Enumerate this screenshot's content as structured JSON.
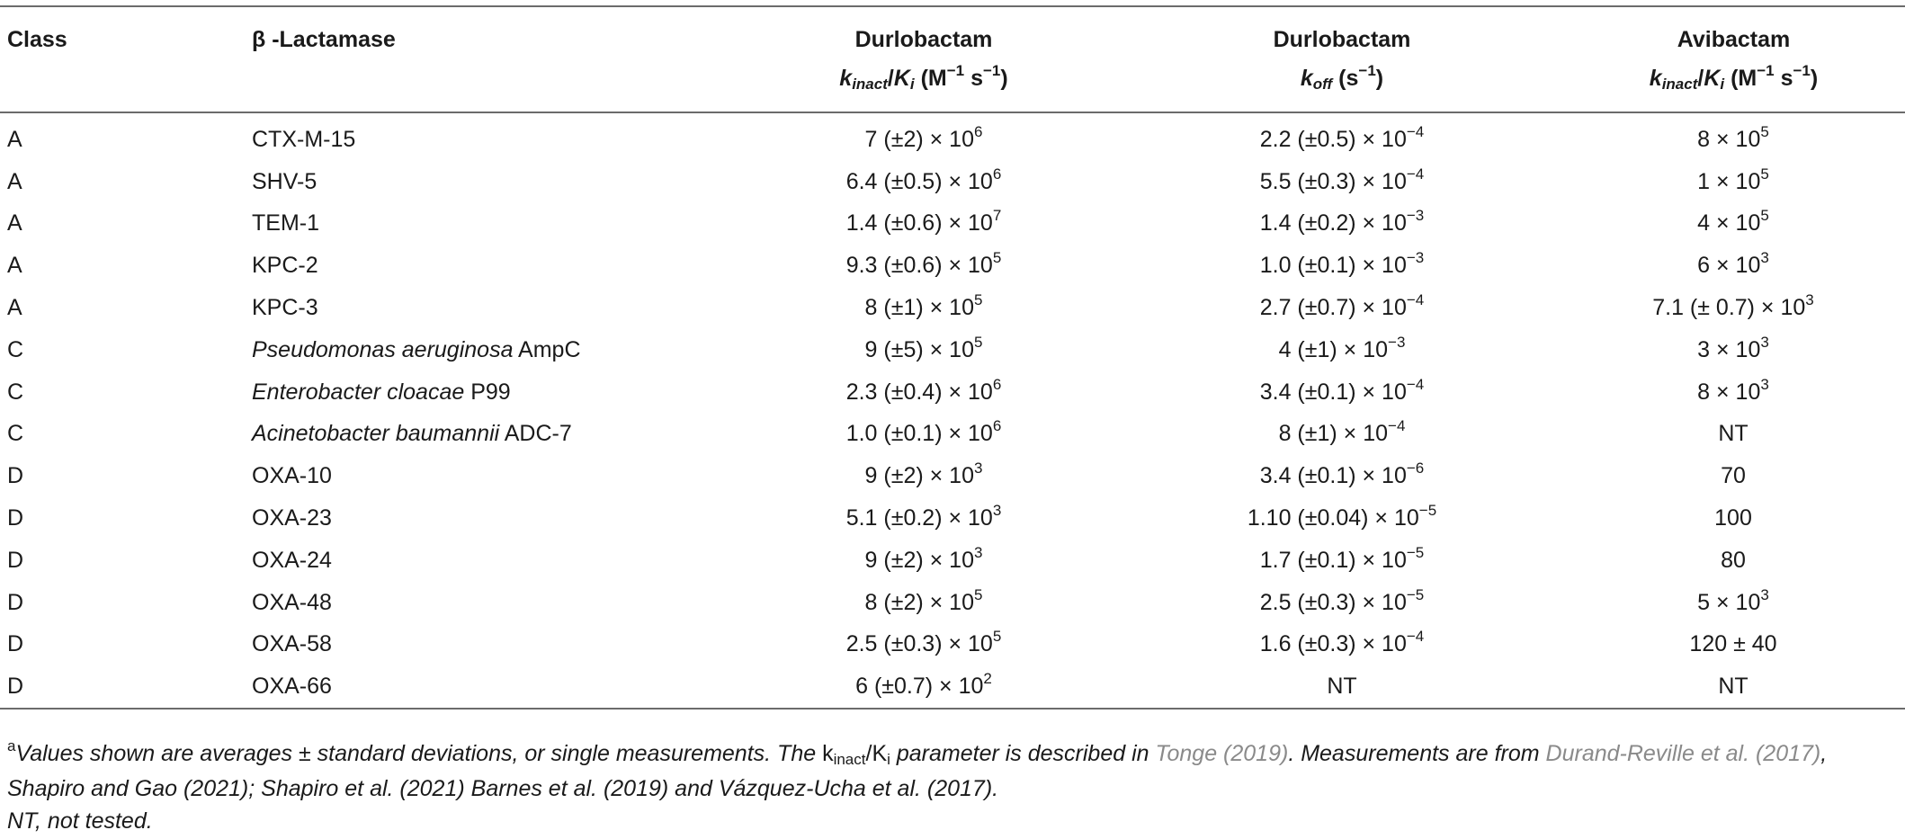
{
  "headers": {
    "class": "Class",
    "lactamase": "β -Lactamase",
    "col3_top": "Durlobactam",
    "col4_top": "Durlobactam",
    "col5_top": "Avibactam",
    "kinact_ki": {
      "k": "k",
      "k_sub": "inact",
      "slash": "/",
      "K": "K",
      "K_sub": "i",
      "unit_open": " (M",
      "unit_exp1": "−1",
      "unit_mid": " s",
      "unit_exp2": "−1",
      "unit_close": ")"
    },
    "koff": {
      "k": "k",
      "k_sub": "off",
      "unit_open": " (s",
      "unit_exp": "−1",
      "unit_close": ")"
    }
  },
  "rows": [
    {
      "class": "A",
      "enzyme_it": "",
      "enzyme": "CTX-M-15",
      "d_base": "7 (±2) × 10",
      "d_exp": "6",
      "k_base": "2.2 (±0.5) × 10",
      "k_exp": "−4",
      "a_base": "8 × 10",
      "a_exp": "5"
    },
    {
      "class": "A",
      "enzyme_it": "",
      "enzyme": "SHV-5",
      "d_base": "6.4 (±0.5) × 10",
      "d_exp": "6",
      "k_base": "5.5 (±0.3) × 10",
      "k_exp": "−4",
      "a_base": "1 × 10",
      "a_exp": "5"
    },
    {
      "class": "A",
      "enzyme_it": "",
      "enzyme": "TEM-1",
      "d_base": "1.4 (±0.6) × 10",
      "d_exp": "7",
      "k_base": "1.4 (±0.2) × 10",
      "k_exp": "−3",
      "a_base": "4 × 10",
      "a_exp": "5"
    },
    {
      "class": "A",
      "enzyme_it": "",
      "enzyme": "KPC-2",
      "d_base": "9.3 (±0.6) × 10",
      "d_exp": "5",
      "k_base": "1.0 (±0.1) × 10",
      "k_exp": "−3",
      "a_base": "6 × 10",
      "a_exp": "3"
    },
    {
      "class": "A",
      "enzyme_it": "",
      "enzyme": "KPC-3",
      "d_base": "8 (±1) × 10",
      "d_exp": "5",
      "k_base": "2.7 (±0.7) × 10",
      "k_exp": "−4",
      "a_base": "7.1 (± 0.7) × 10",
      "a_exp": "3"
    },
    {
      "class": "C",
      "enzyme_it": "Pseudomonas aeruginosa",
      "enzyme": " AmpC",
      "d_base": "9 (±5) × 10",
      "d_exp": "5",
      "k_base": "4 (±1) × 10",
      "k_exp": "−3",
      "a_base": "3 × 10",
      "a_exp": "3"
    },
    {
      "class": "C",
      "enzyme_it": "Enterobacter cloacae",
      "enzyme": " P99",
      "d_base": "2.3 (±0.4) × 10",
      "d_exp": "6",
      "k_base": "3.4 (±0.1) × 10",
      "k_exp": "−4",
      "a_base": "8 × 10",
      "a_exp": "3"
    },
    {
      "class": "C",
      "enzyme_it": "Acinetobacter baumannii",
      "enzyme": " ADC-7",
      "d_base": "1.0 (±0.1) × 10",
      "d_exp": "6",
      "k_base": "8 (±1) × 10",
      "k_exp": "−4",
      "a_base": "NT",
      "a_exp": ""
    },
    {
      "class": "D",
      "enzyme_it": "",
      "enzyme": "OXA-10",
      "d_base": "9 (±2) × 10",
      "d_exp": "3",
      "k_base": "3.4 (±0.1) × 10",
      "k_exp": "−6",
      "a_base": "70",
      "a_exp": ""
    },
    {
      "class": "D",
      "enzyme_it": "",
      "enzyme": "OXA-23",
      "d_base": "5.1 (±0.2) × 10",
      "d_exp": "3",
      "k_base": "1.10 (±0.04) × 10",
      "k_exp": "−5",
      "a_base": "100",
      "a_exp": ""
    },
    {
      "class": "D",
      "enzyme_it": "",
      "enzyme": "OXA-24",
      "d_base": "9 (±2) × 10",
      "d_exp": "3",
      "k_base": "1.7 (±0.1) × 10",
      "k_exp": "−5",
      "a_base": "80",
      "a_exp": ""
    },
    {
      "class": "D",
      "enzyme_it": "",
      "enzyme": "OXA-48",
      "d_base": "8 (±2) × 10",
      "d_exp": "5",
      "k_base": "2.5 (±0.3) × 10",
      "k_exp": "−5",
      "a_base": "5 × 10",
      "a_exp": "3"
    },
    {
      "class": "D",
      "enzyme_it": "",
      "enzyme": "OXA-58",
      "d_base": "2.5 (±0.3) × 10",
      "d_exp": "5",
      "k_base": "1.6 (±0.3) × 10",
      "k_exp": "−4",
      "a_base": "120 ± 40",
      "a_exp": ""
    },
    {
      "class": "D",
      "enzyme_it": "",
      "enzyme": "OXA-66",
      "d_base": "6 (±0.7) × 10",
      "d_exp": "2",
      "k_base": "NT",
      "k_exp": "",
      "a_base": "NT",
      "a_exp": ""
    }
  ],
  "footnote": {
    "mark": "a",
    "t1": "Values shown are averages ± standard deviations, or single measurements. The ",
    "k": "k",
    "k_sub": "inact",
    "slash": "/K",
    "K_sub": "i",
    "t2": " parameter is described in ",
    "ref1": "Tonge (2019)",
    "t3": ". Measurements are from ",
    "ref2": "Durand-Reville et al. (2017)",
    "t4": ", ",
    "ref3": "Shapiro and Gao (2021)",
    "t5": "; ",
    "ref4": "Shapiro et al. (2021)",
    "t6": " ",
    "ref5": "Barnes et al. (2019)",
    "t7": " and ",
    "ref6": "Vázquez-Ucha et al. (2017)",
    "t8": ".",
    "line2": "NT, not tested."
  }
}
